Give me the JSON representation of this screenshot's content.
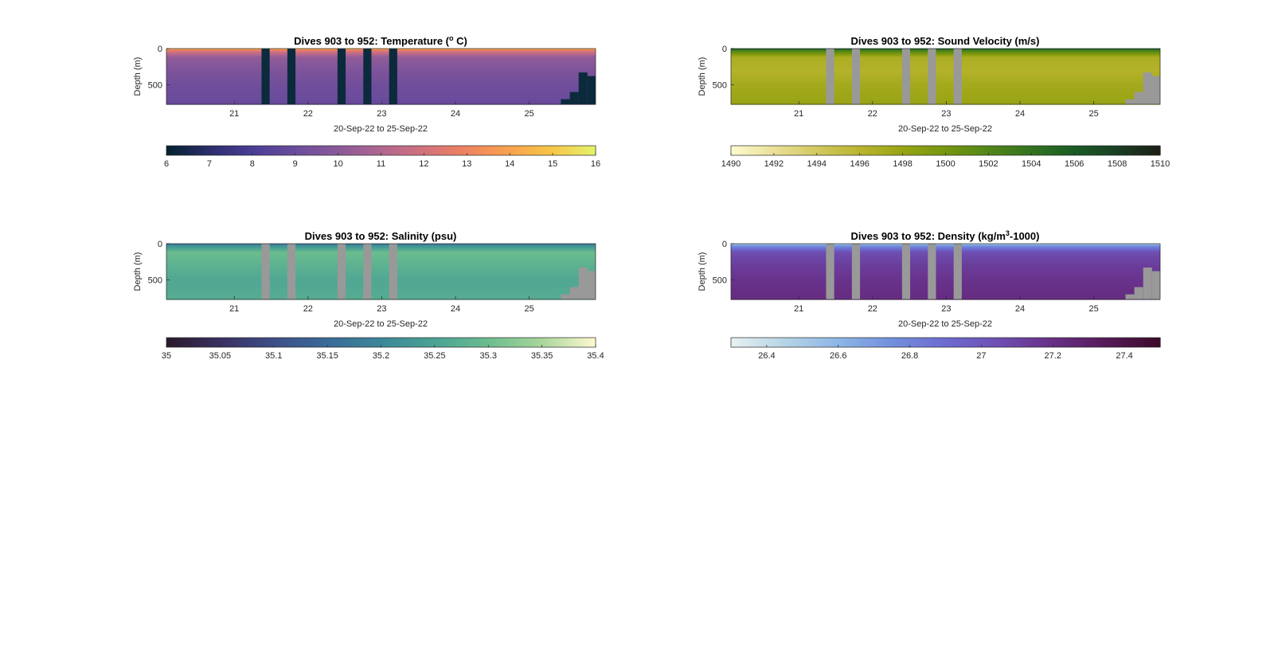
{
  "figure": {
    "dives_label": "Dives 903 to 952",
    "date_range_label": "20-Sep-22 to 25-Sep-22",
    "ylabel": "Depth (m)"
  },
  "colors": {
    "missing_gap_gray": "#999999",
    "temperature_gap": "#0b2a3c"
  },
  "chart_data": [
    {
      "id": "temperature",
      "type": "heatmap",
      "title_prefix": "Dives 903 to 952: Temperature (",
      "title_sup": "o",
      "title_suffix": " C)",
      "xlabel": "20-Sep-22 to 25-Sep-22",
      "ylabel": "Depth (m)",
      "x_ticks": [
        21,
        22,
        23,
        24,
        25
      ],
      "x_range": [
        20.08,
        25.9
      ],
      "y_ticks": [
        0,
        500
      ],
      "y_range": [
        0,
        770
      ],
      "y_reversed": true,
      "colorbar": {
        "ticks": [
          6,
          7,
          8,
          9,
          10,
          11,
          12,
          13,
          14,
          15,
          16
        ],
        "range": [
          6,
          16
        ],
        "colors": [
          "#05222f",
          "#2c2e6e",
          "#4a3e95",
          "#6b4c9c",
          "#8b5a9a",
          "#b06690",
          "#d2717c",
          "#ee8361",
          "#f8a24e",
          "#f7c547",
          "#e5f16b"
        ]
      },
      "gap_color": "#0b2a3c",
      "profile": [
        {
          "depth": 0,
          "value": 14.6
        },
        {
          "depth": 30,
          "value": 12.4
        },
        {
          "depth": 120,
          "value": 10.2
        },
        {
          "depth": 300,
          "value": 9.6
        },
        {
          "depth": 500,
          "value": 9.2
        },
        {
          "depth": 770,
          "value": 8.9
        }
      ]
    },
    {
      "id": "sound_velocity",
      "type": "heatmap",
      "title_prefix": "Dives 903 to 952: Sound Velocity (m/s)",
      "title_sup": "",
      "title_suffix": "",
      "xlabel": "20-Sep-22 to 25-Sep-22",
      "ylabel": "Depth (m)",
      "x_ticks": [
        21,
        22,
        23,
        24,
        25
      ],
      "x_range": [
        20.08,
        25.9
      ],
      "y_ticks": [
        0,
        500
      ],
      "y_range": [
        0,
        770
      ],
      "y_reversed": true,
      "colorbar": {
        "ticks": [
          1490,
          1492,
          1494,
          1496,
          1498,
          1500,
          1502,
          1504,
          1506,
          1508,
          1510
        ],
        "range": [
          1490,
          1510
        ],
        "colors": [
          "#fdfacd",
          "#e9df96",
          "#d2c85e",
          "#b8b42e",
          "#98a414",
          "#76960f",
          "#538619",
          "#33731f",
          "#1a5c25",
          "#1a3f24",
          "#1c1f16"
        ]
      },
      "gap_color": "#999999",
      "profile": [
        {
          "depth": 0,
          "value": 1506.5
        },
        {
          "depth": 30,
          "value": 1502.5
        },
        {
          "depth": 120,
          "value": 1496.8
        },
        {
          "depth": 300,
          "value": 1496.2
        },
        {
          "depth": 500,
          "value": 1497.2
        },
        {
          "depth": 770,
          "value": 1498.0
        }
      ]
    },
    {
      "id": "salinity",
      "type": "heatmap",
      "title_prefix": "Dives 903 to 952: Salinity (psu)",
      "title_sup": "",
      "title_suffix": "",
      "xlabel": "20-Sep-22 to 25-Sep-22",
      "ylabel": "Depth (m)",
      "x_ticks": [
        21,
        22,
        23,
        24,
        25
      ],
      "x_range": [
        20.08,
        25.9
      ],
      "y_ticks": [
        0,
        500
      ],
      "y_range": [
        0,
        770
      ],
      "y_reversed": true,
      "colorbar": {
        "ticks": [
          35,
          35.05,
          35.1,
          35.15,
          35.2,
          35.25,
          35.3,
          35.35,
          35.4
        ],
        "range": [
          35,
          35.4
        ],
        "colors": [
          "#2b1a2d",
          "#3b3163",
          "#3d4f88",
          "#3a6b98",
          "#3c8799",
          "#4aa294",
          "#6bbc8f",
          "#a6d59a",
          "#fdf7d0"
        ]
      },
      "gap_color": "#999999",
      "profile": [
        {
          "depth": 0,
          "value": 35.16
        },
        {
          "depth": 30,
          "value": 35.22
        },
        {
          "depth": 120,
          "value": 35.3
        },
        {
          "depth": 300,
          "value": 35.28
        },
        {
          "depth": 500,
          "value": 35.26
        },
        {
          "depth": 770,
          "value": 35.27
        }
      ]
    },
    {
      "id": "density",
      "type": "heatmap",
      "title_prefix": "Dives 903 to 952: Density (kg/m",
      "title_sup": "3",
      "title_suffix": "-1000)",
      "xlabel": "20-Sep-22 to 25-Sep-22",
      "ylabel": "Depth (m)",
      "x_ticks": [
        21,
        22,
        23,
        24,
        25
      ],
      "x_range": [
        20.08,
        25.9
      ],
      "y_ticks": [
        0,
        500
      ],
      "y_range": [
        0,
        770
      ],
      "y_reversed": true,
      "colorbar": {
        "ticks": [
          26.4,
          26.6,
          26.8,
          27,
          27.2,
          27.4
        ],
        "range": [
          26.3,
          27.5
        ],
        "colors": [
          "#e6f0f1",
          "#b5d3e6",
          "#8cb5e5",
          "#728fdc",
          "#6d6bd0",
          "#6e4fb2",
          "#682f87",
          "#561b59",
          "#3c0a2c"
        ]
      },
      "gap_color": "#999999",
      "profile": [
        {
          "depth": 0,
          "value": 26.45
        },
        {
          "depth": 30,
          "value": 26.75
        },
        {
          "depth": 120,
          "value": 27.05
        },
        {
          "depth": 300,
          "value": 27.13
        },
        {
          "depth": 500,
          "value": 27.18
        },
        {
          "depth": 770,
          "value": 27.22
        }
      ]
    }
  ],
  "gaps_days": [
    {
      "start": 21.37,
      "end": 21.48
    },
    {
      "start": 21.72,
      "end": 21.83
    },
    {
      "start": 22.4,
      "end": 22.51
    },
    {
      "start": 22.75,
      "end": 22.86
    },
    {
      "start": 23.1,
      "end": 23.21
    }
  ],
  "bottom_mask": [
    {
      "x_start": 25.43,
      "x_end": 25.55,
      "depth": 700
    },
    {
      "x_start": 25.55,
      "x_end": 25.67,
      "depth": 600
    },
    {
      "x_start": 25.67,
      "x_end": 25.79,
      "depth": 330
    },
    {
      "x_start": 25.79,
      "x_end": 25.9,
      "depth": 380
    }
  ]
}
